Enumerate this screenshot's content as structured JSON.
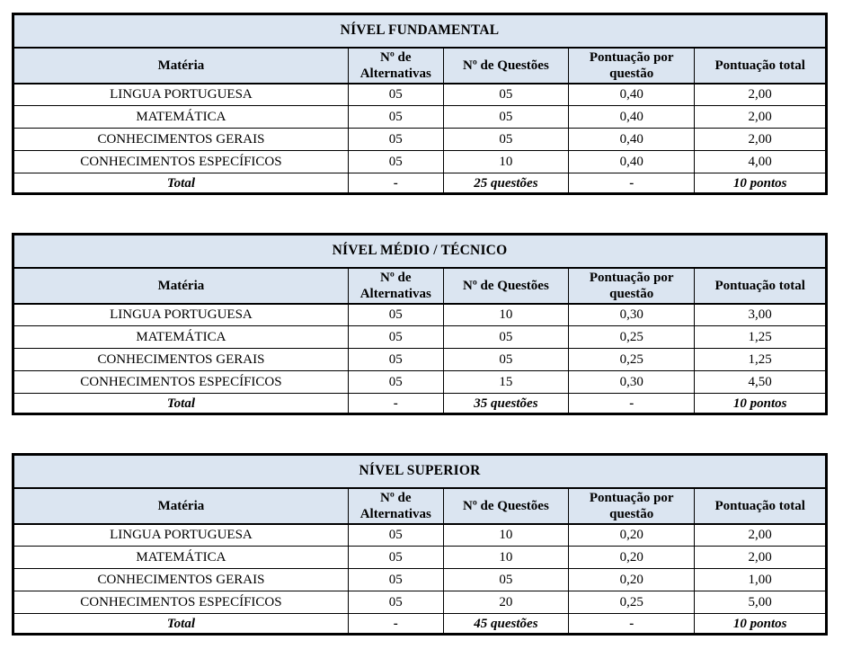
{
  "colors": {
    "header_bg": "#dbe5f1",
    "border": "#000000",
    "text": "#000000",
    "page_bg": "#ffffff"
  },
  "tables": [
    {
      "title": "NÍVEL FUNDAMENTAL",
      "columns": [
        "Matéria",
        "Nº de Alternativas",
        "Nº de Questões",
        "Pontuação por questão",
        "Pontuação total"
      ],
      "rows": [
        [
          "LINGUA PORTUGUESA",
          "05",
          "05",
          "0,40",
          "2,00"
        ],
        [
          "MATEMÁTICA",
          "05",
          "05",
          "0,40",
          "2,00"
        ],
        [
          "CONHECIMENTOS GERAIS",
          "05",
          "05",
          "0,40",
          "2,00"
        ],
        [
          "CONHECIMENTOS ESPECÍFICOS",
          "05",
          "10",
          "0,40",
          "4,00"
        ]
      ],
      "total": [
        "Total",
        "-",
        "25 questões",
        "-",
        "10 pontos"
      ]
    },
    {
      "title": "NÍVEL MÉDIO / TÉCNICO",
      "columns": [
        "Matéria",
        "Nº de Alternativas",
        "Nº de Questões",
        "Pontuação por questão",
        "Pontuação total"
      ],
      "rows": [
        [
          "LINGUA PORTUGUESA",
          "05",
          "10",
          "0,30",
          "3,00"
        ],
        [
          "MATEMÁTICA",
          "05",
          "05",
          "0,25",
          "1,25"
        ],
        [
          "CONHECIMENTOS GERAIS",
          "05",
          "05",
          "0,25",
          "1,25"
        ],
        [
          "CONHECIMENTOS ESPECÍFICOS",
          "05",
          "15",
          "0,30",
          "4,50"
        ]
      ],
      "total": [
        "Total",
        "-",
        "35 questões",
        "-",
        "10 pontos"
      ]
    },
    {
      "title": "NÍVEL SUPERIOR",
      "columns": [
        "Matéria",
        "Nº de Alternativas",
        "Nº de Questões",
        "Pontuação por questão",
        "Pontuação total"
      ],
      "rows": [
        [
          "LINGUA PORTUGUESA",
          "05",
          "10",
          "0,20",
          "2,00"
        ],
        [
          "MATEMÁTICA",
          "05",
          "10",
          "0,20",
          "2,00"
        ],
        [
          "CONHECIMENTOS GERAIS",
          "05",
          "05",
          "0,20",
          "1,00"
        ],
        [
          "CONHECIMENTOS ESPECÍFICOS",
          "05",
          "20",
          "0,25",
          "5,00"
        ]
      ],
      "total": [
        "Total",
        "-",
        "45 questões",
        "-",
        "10 pontos"
      ]
    }
  ]
}
